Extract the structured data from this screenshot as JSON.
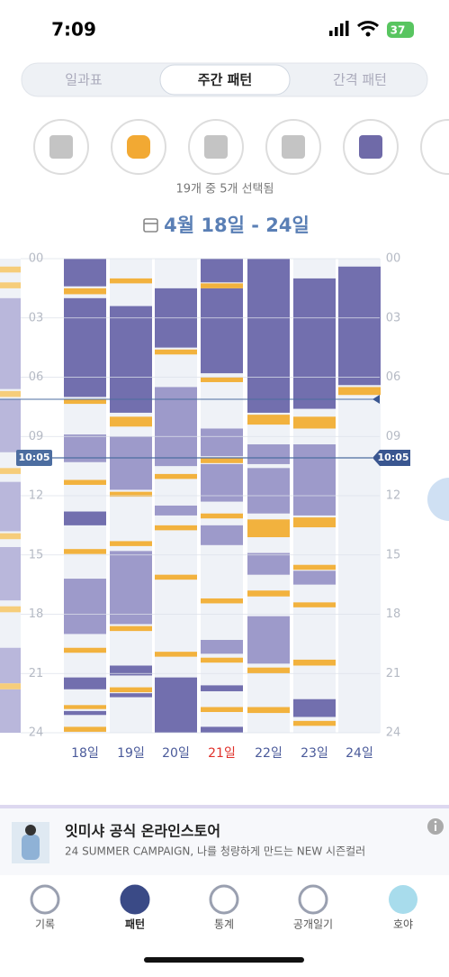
{
  "status": {
    "time": "7:09",
    "battery": "37"
  },
  "tabs": [
    "일과표",
    "주간 패턴",
    "간격 패턴"
  ],
  "selected_tab": 1,
  "filter_note": "19개 중 5개 선택됨",
  "date_range": "4월 18일 - 24일",
  "yticks": [
    {
      "value": 0,
      "label": "00"
    },
    {
      "value": 3,
      "label": "03"
    },
    {
      "value": 6,
      "label": "06"
    },
    {
      "value": 9,
      "label": "09"
    },
    {
      "value": 12,
      "label": "12"
    },
    {
      "value": 15,
      "label": "15"
    },
    {
      "value": 18,
      "label": "18"
    },
    {
      "value": 21,
      "label": "21"
    },
    {
      "value": 24,
      "label": "24"
    }
  ],
  "ylim": [
    0,
    24
  ],
  "now": {
    "value": 10.083,
    "label": "10:05"
  },
  "prev_day": {
    "light": [
      [
        2,
        6.6
      ],
      [
        7.1,
        9.8
      ],
      [
        11.3,
        13.8
      ],
      [
        14.6,
        17.3
      ],
      [
        19.7,
        21.5
      ],
      [
        21.8,
        24
      ]
    ],
    "feed": [
      [
        0.4,
        0.7
      ],
      [
        1.2,
        1.5
      ],
      [
        6.7,
        7
      ],
      [
        10.6,
        10.9
      ],
      [
        13.9,
        14.2
      ],
      [
        17.6,
        17.9
      ],
      [
        21.5,
        21.8
      ]
    ]
  },
  "days": [
    {
      "label": "18일",
      "dark": [
        [
          0,
          1.4
        ],
        [
          2,
          7
        ],
        [
          12.8,
          13.5
        ],
        [
          21.2,
          21.8
        ],
        [
          22.9,
          23.1
        ]
      ],
      "light": [
        [
          8.9,
          10.3
        ],
        [
          16.2,
          19
        ]
      ],
      "feed": [
        [
          1.5,
          1.8
        ],
        [
          7.1,
          7.35
        ],
        [
          11.2,
          11.45
        ],
        [
          14.7,
          14.95
        ],
        [
          19.7,
          19.95
        ],
        [
          22.6,
          22.8
        ],
        [
          23.7,
          23.95
        ]
      ]
    },
    {
      "label": "19일",
      "dark": [
        [
          2.4,
          7.8
        ],
        [
          20.6,
          21.1
        ],
        [
          22,
          22.2
        ]
      ],
      "light": [
        [
          9,
          11.7
        ],
        [
          14.8,
          18.5
        ]
      ],
      "feed": [
        [
          1,
          1.25
        ],
        [
          8,
          8.5
        ],
        [
          11.8,
          12.05
        ],
        [
          14.3,
          14.55
        ],
        [
          18.6,
          18.85
        ],
        [
          21.7,
          21.95
        ]
      ]
    },
    {
      "label": "20일",
      "dark": [
        [
          1.5,
          4.5
        ],
        [
          21.2,
          24
        ]
      ],
      "light": [
        [
          6.5,
          10.5
        ],
        [
          12.5,
          13
        ]
      ],
      "feed": [
        [
          4.6,
          4.85
        ],
        [
          10.9,
          11.15
        ],
        [
          13.5,
          13.75
        ],
        [
          16,
          16.25
        ],
        [
          19.9,
          20.15
        ]
      ]
    },
    {
      "label": "21일",
      "red": true,
      "dark": [
        [
          0,
          1.2
        ],
        [
          1.5,
          5.8
        ],
        [
          21.6,
          21.9
        ],
        [
          23.7,
          24
        ]
      ],
      "light": [
        [
          8.6,
          10
        ],
        [
          10.4,
          12.3
        ],
        [
          13.5,
          14.5
        ],
        [
          19.3,
          20
        ]
      ],
      "feed": [
        [
          1.25,
          1.5
        ],
        [
          6,
          6.25
        ],
        [
          10.1,
          10.35
        ],
        [
          12.9,
          13.15
        ],
        [
          17.2,
          17.45
        ],
        [
          20.2,
          20.45
        ],
        [
          22.7,
          22.95
        ]
      ]
    },
    {
      "label": "22일",
      "dark": [
        [
          0,
          7.8
        ]
      ],
      "light": [
        [
          9.4,
          10.4
        ],
        [
          10.6,
          12.9
        ],
        [
          14.9,
          16
        ],
        [
          18.1,
          20.5
        ]
      ],
      "feed": [
        [
          7.9,
          8.4
        ],
        [
          13.2,
          14.1
        ],
        [
          16.8,
          17.1
        ],
        [
          20.7,
          21
        ],
        [
          22.7,
          23
        ]
      ]
    },
    {
      "label": "23일",
      "dark": [
        [
          1,
          7.6
        ],
        [
          22.3,
          23.2
        ]
      ],
      "light": [
        [
          9.4,
          13
        ],
        [
          15.8,
          16.5
        ]
      ],
      "feed": [
        [
          8,
          8.6
        ],
        [
          13.1,
          13.6
        ],
        [
          15.5,
          15.75
        ],
        [
          17.4,
          17.65
        ],
        [
          20.3,
          20.6
        ],
        [
          23.4,
          23.65
        ]
      ]
    },
    {
      "label": "24일",
      "dark": [
        [
          0.4,
          6.4
        ]
      ],
      "light": [],
      "feed": [
        [
          6.5,
          6.9
        ]
      ]
    }
  ],
  "ad": {
    "title": "잇미샤 공식 온라인스토어",
    "subtitle": "24 SUMMER CAMPAIGN, 나를 청량하게 만드는 NEW 시즌컬러"
  },
  "nav": [
    "기록",
    "패턴",
    "통계",
    "공개일기",
    "호야"
  ],
  "selected_nav": 1
}
